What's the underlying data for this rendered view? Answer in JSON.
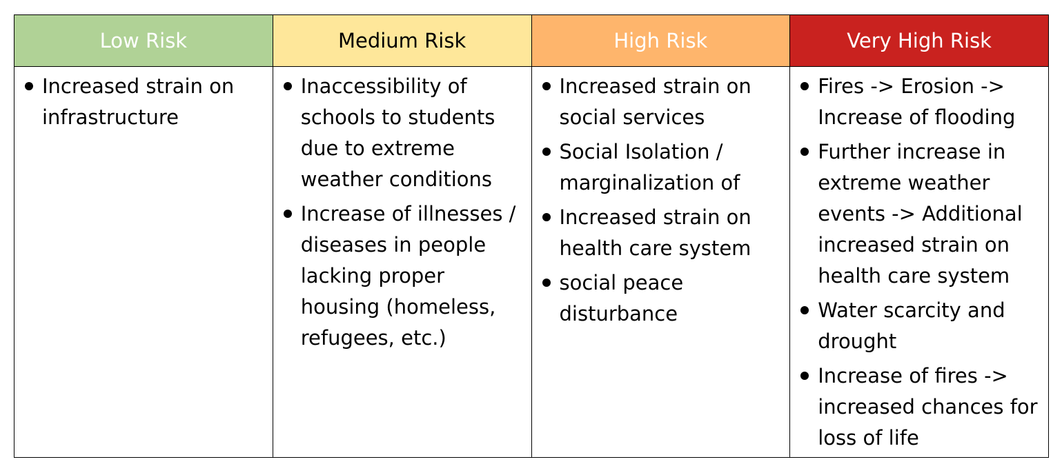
{
  "colors": {
    "low_bg": "#b0d296",
    "low_fg": "#ffffff",
    "medium_bg": "#fee79a",
    "medium_fg": "#000000",
    "high_bg": "#feb56c",
    "high_fg": "#ffffff",
    "very_high_bg": "#c9221f",
    "very_high_fg": "#ffffff"
  },
  "columns": [
    {
      "header": "Low Risk",
      "items": [
        "Increased strain on infrastructure"
      ]
    },
    {
      "header": "Medium Risk",
      "items": [
        "Inaccessibility of schools to students due to extreme weather conditions",
        "Increase of illnesses / diseases in people lacking proper housing (homeless, refugees, etc.)"
      ]
    },
    {
      "header": "High Risk",
      "items": [
        "Increased strain on social services",
        "Social Isolation / marginalization of",
        "Increased strain on health care system",
        "social peace disturbance"
      ]
    },
    {
      "header": "Very High Risk",
      "items": [
        "Fires -> Erosion -> Increase of flooding",
        "Further increase in extreme weather events -> Additional increased strain on health care system",
        "Water scarcity and drought",
        "Increase of fires -> increased chances for loss of life"
      ]
    }
  ]
}
